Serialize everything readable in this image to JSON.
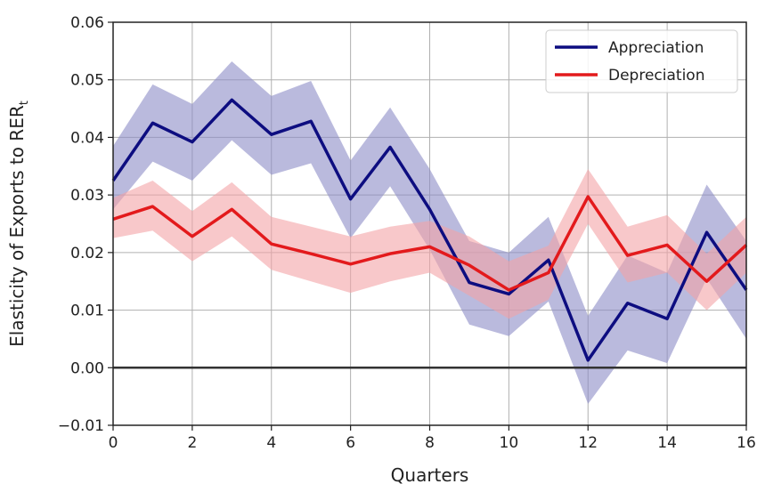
{
  "chart_data": {
    "type": "line",
    "xlabel": "Quarters",
    "ylabel": "Elasticity of Exports to RER",
    "ylabel_subscript": "t",
    "xlim": [
      0,
      16
    ],
    "ylim": [
      -0.01,
      0.06
    ],
    "x_ticks": [
      0,
      2,
      4,
      6,
      8,
      10,
      12,
      14,
      16
    ],
    "x_tick_labels": [
      "0",
      "2",
      "4",
      "6",
      "8",
      "10",
      "12",
      "14",
      "16"
    ],
    "y_ticks": [
      -0.01,
      0.0,
      0.01,
      0.02,
      0.03,
      0.04,
      0.05,
      0.06
    ],
    "y_tick_labels": [
      "−0.01",
      "0.00",
      "0.01",
      "0.02",
      "0.03",
      "0.04",
      "0.05",
      "0.06"
    ],
    "grid": true,
    "legend_position": "top-right",
    "zero_line": true,
    "x": [
      0,
      1,
      2,
      3,
      4,
      5,
      6,
      7,
      8,
      9,
      10,
      11,
      12,
      13,
      14,
      15,
      16
    ],
    "series": [
      {
        "name": "Appreciation",
        "color": "#0d0d80",
        "band_color": "#8c8cc6",
        "values": [
          0.0325,
          0.0425,
          0.0392,
          0.0465,
          0.0405,
          0.0428,
          0.0293,
          0.0383,
          0.0275,
          0.0148,
          0.0128,
          0.0187,
          0.0013,
          0.0112,
          0.0085,
          0.0235,
          0.0135
        ],
        "lower": [
          0.0275,
          0.0358,
          0.0325,
          0.0395,
          0.0335,
          0.0355,
          0.0225,
          0.0315,
          0.0205,
          0.0075,
          0.0055,
          0.0115,
          -0.0063,
          0.003,
          0.0008,
          0.0155,
          0.005
        ],
        "upper": [
          0.0385,
          0.0492,
          0.0458,
          0.0532,
          0.0472,
          0.0498,
          0.036,
          0.0452,
          0.0345,
          0.022,
          0.02,
          0.0262,
          0.009,
          0.0195,
          0.0165,
          0.0318,
          0.022
        ]
      },
      {
        "name": "Depreciation",
        "color": "#e31a1c",
        "band_color": "#f4a4a6",
        "values": [
          0.0258,
          0.028,
          0.0228,
          0.0275,
          0.0215,
          0.0198,
          0.018,
          0.0198,
          0.021,
          0.0178,
          0.0135,
          0.0165,
          0.0297,
          0.0195,
          0.0213,
          0.015,
          0.0213
        ],
        "lower": [
          0.0225,
          0.0238,
          0.0185,
          0.0228,
          0.017,
          0.015,
          0.013,
          0.015,
          0.0165,
          0.0125,
          0.0085,
          0.0118,
          0.025,
          0.0148,
          0.0165,
          0.01,
          0.0165
        ],
        "upper": [
          0.0295,
          0.0325,
          0.0272,
          0.0322,
          0.0262,
          0.0245,
          0.0228,
          0.0245,
          0.0255,
          0.0228,
          0.0185,
          0.0212,
          0.0345,
          0.0245,
          0.0265,
          0.0198,
          0.0262
        ]
      }
    ]
  }
}
